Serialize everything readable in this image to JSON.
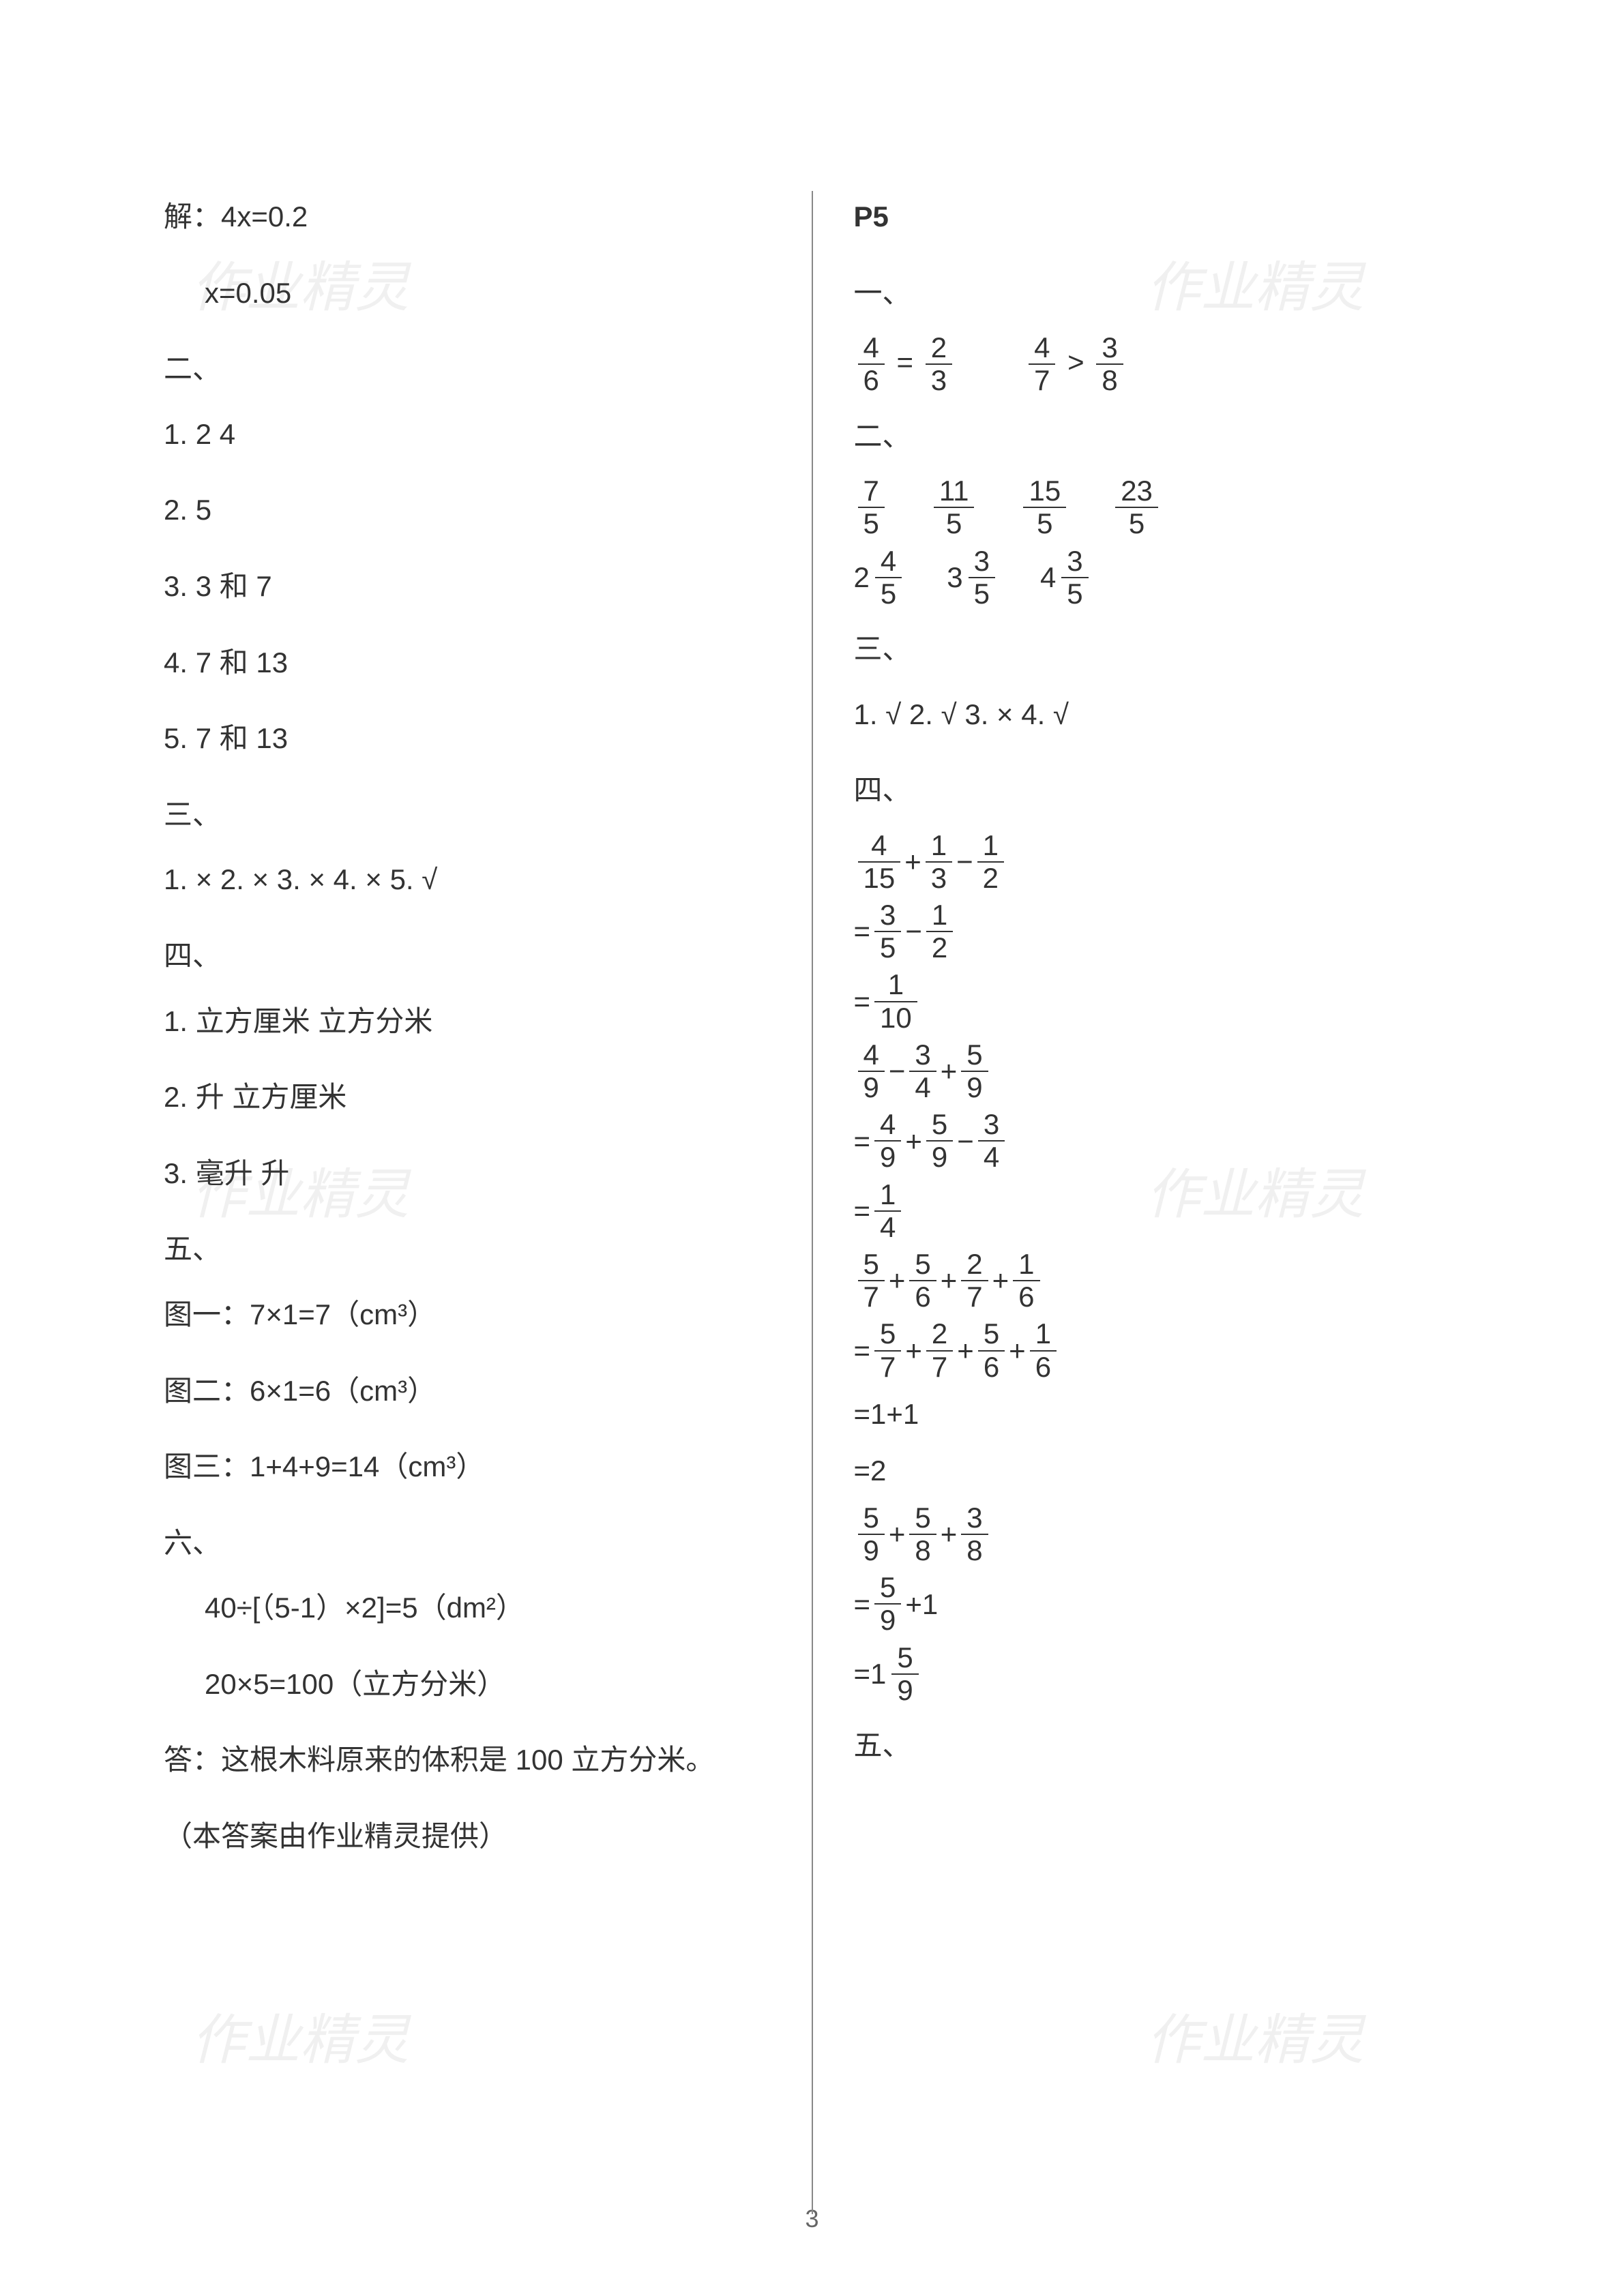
{
  "pageNumber": "3",
  "watermarkText": "作业精灵",
  "left": {
    "solve1": "解：4x=0.2",
    "solve2": "x=0.05",
    "s2": "二、",
    "s2_1": "1.   2   4",
    "s2_2": "2.   5",
    "s2_3": "3.   3 和 7",
    "s2_4": "4.   7 和 13",
    "s2_5": "5.   7 和 13",
    "s3": "三、",
    "s3_line": "1. ×    2. ×    3. ×    4. ×    5. √",
    "s4": "四、",
    "s4_1": "1.   立方厘米    立方分米",
    "s4_2": "2.   升    立方厘米",
    "s4_3": "3.   毫升    升",
    "s5": "五、",
    "s5_1": "图一：7×1=7（cm³）",
    "s5_2": "图二：6×1=6（cm³）",
    "s5_3": "图三：1+4+9=14（cm³）",
    "s6": "六、",
    "s6_1": "40÷[（5-1）×2]=5（dm²）",
    "s6_2": "20×5=100（立方分米）",
    "s6_3": "答：这根木料原来的体积是 100 立方分米。",
    "footer": "（本答案由作业精灵提供）"
  },
  "right": {
    "pageRef": "P5",
    "s1": "一、",
    "s1_eq1": {
      "a": {
        "n": "4",
        "d": "6"
      },
      "op": "=",
      "b": {
        "n": "2",
        "d": "3"
      }
    },
    "s1_eq2": {
      "a": {
        "n": "4",
        "d": "7"
      },
      "op": ">",
      "b": {
        "n": "3",
        "d": "8"
      }
    },
    "s2": "二、",
    "s2_row1": [
      {
        "n": "7",
        "d": "5"
      },
      {
        "n": "11",
        "d": "5"
      },
      {
        "n": "15",
        "d": "5"
      },
      {
        "n": "23",
        "d": "5"
      }
    ],
    "s2_row2": [
      {
        "w": "2",
        "n": "4",
        "d": "5"
      },
      {
        "w": "3",
        "n": "3",
        "d": "5"
      },
      {
        "w": "4",
        "n": "3",
        "d": "5"
      }
    ],
    "s3": "三、",
    "s3_line": "1. √    2. √    3. ×    4. √",
    "s4": "四、",
    "calc1": {
      "l1": [
        {
          "n": "4",
          "d": "15"
        },
        "+",
        {
          "n": "1",
          "d": "3"
        },
        "−",
        {
          "n": "1",
          "d": "2"
        }
      ],
      "l2": [
        "=",
        {
          "n": "3",
          "d": "5"
        },
        "−",
        {
          "n": "1",
          "d": "2"
        }
      ],
      "l3": [
        "=",
        {
          "n": "1",
          "d": "10"
        }
      ]
    },
    "calc2": {
      "l1": [
        {
          "n": "4",
          "d": "9"
        },
        "−",
        {
          "n": "3",
          "d": "4"
        },
        "+",
        {
          "n": "5",
          "d": "9"
        }
      ],
      "l2": [
        "=",
        {
          "n": "4",
          "d": "9"
        },
        "+",
        {
          "n": "5",
          "d": "9"
        },
        "−",
        {
          "n": "3",
          "d": "4"
        }
      ],
      "l3": [
        "=",
        {
          "n": "1",
          "d": "4"
        }
      ]
    },
    "calc3": {
      "l1": [
        {
          "n": "5",
          "d": "7"
        },
        "+",
        {
          "n": "5",
          "d": "6"
        },
        "+",
        {
          "n": "2",
          "d": "7"
        },
        "+",
        {
          "n": "1",
          "d": "6"
        }
      ],
      "l2": [
        "=",
        {
          "n": "5",
          "d": "7"
        },
        "+",
        {
          "n": "2",
          "d": "7"
        },
        "+",
        {
          "n": "5",
          "d": "6"
        },
        "+",
        {
          "n": "1",
          "d": "6"
        }
      ],
      "l3": "=1+1",
      "l4": "=2"
    },
    "calc4": {
      "l1": [
        {
          "n": "5",
          "d": "9"
        },
        "+",
        {
          "n": "5",
          "d": "8"
        },
        "+",
        {
          "n": "3",
          "d": "8"
        }
      ],
      "l2": [
        "=",
        {
          "n": "5",
          "d": "9"
        },
        "+1"
      ],
      "l3": [
        "=",
        {
          "w": "1",
          "n": "5",
          "d": "9"
        }
      ]
    },
    "s5": "五、"
  }
}
